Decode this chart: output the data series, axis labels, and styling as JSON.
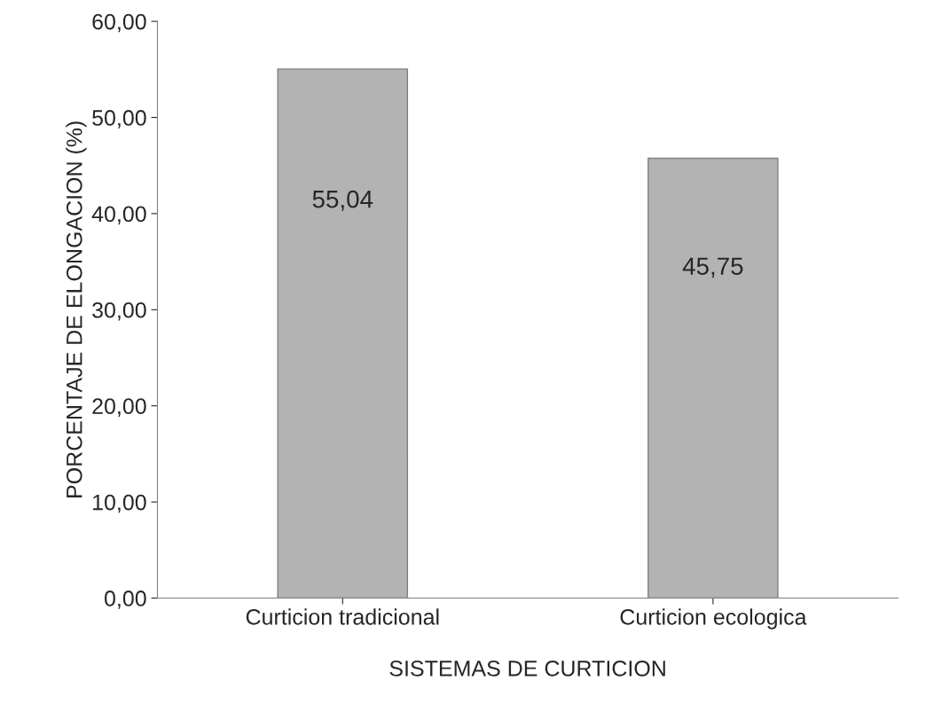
{
  "chart_data": {
    "type": "bar",
    "xlabel": "SISTEMAS DE CURTICION",
    "ylabel": "PORCENTAJE DE ELONGACION (%)",
    "categories": [
      "Curticion tradicional",
      "Curticion ecologica"
    ],
    "series": [
      {
        "color": "#b3b3b3",
        "values": [
          55.04,
          45.75
        ],
        "value_labels": [
          "55,04",
          "45,75"
        ]
      }
    ],
    "ylim": [
      0,
      60
    ],
    "yticks": [
      {
        "value": 0,
        "label": "0,00"
      },
      {
        "value": 10,
        "label": "10,00"
      },
      {
        "value": 20,
        "label": "20,00"
      },
      {
        "value": 30,
        "label": "30,00"
      },
      {
        "value": 40,
        "label": "40,00"
      },
      {
        "value": 50,
        "label": "50,00"
      },
      {
        "value": 60,
        "label": "60,00"
      }
    ]
  }
}
